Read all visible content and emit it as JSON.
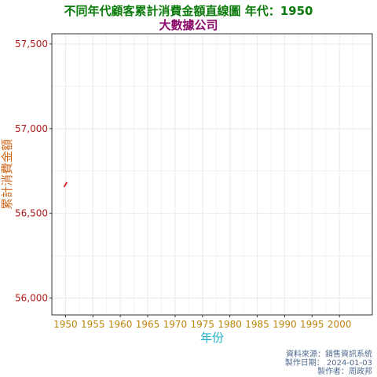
{
  "title": "不同年代顧客累計消費金額直線圖 年代：1950",
  "subtitle": "大數據公司",
  "colors": {
    "title": "#0a7a0a",
    "subtitle": "#8b0a6a",
    "ylabel": "#d2691e",
    "xlabel": "#1fb0c8",
    "ytick": "#b01c1c",
    "xtick": "#b8860b",
    "caption": "#4f6a8f",
    "grid": "#ebebeb",
    "point": "#d01010"
  },
  "caption": {
    "source": "資料來源：銷售資訊系統",
    "date": "製作日期： 2024-01-03",
    "author": "製作者：周政邦"
  },
  "chart_data": {
    "type": "line",
    "title": "不同年代顧客累計消費金額直線圖 年代：1950",
    "subtitle": "大數據公司",
    "xlabel": "年份",
    "ylabel": "累計消費金額",
    "xlim": [
      1947.5,
      2006
    ],
    "ylim": [
      55900,
      57560
    ],
    "x_ticks": [
      1950,
      1955,
      1960,
      1965,
      1970,
      1975,
      1980,
      1985,
      1990,
      1995,
      2000
    ],
    "x_tick_labels": [
      "1950",
      "1955",
      "1960",
      "1965",
      "1970",
      "1975",
      "1980",
      "1985",
      "1990",
      "1995",
      "2000"
    ],
    "y_ticks": [
      56000,
      56500,
      57000,
      57500
    ],
    "y_tick_labels": [
      "56,000",
      "56,500",
      "57,000",
      "57,500"
    ],
    "grid": true,
    "series": [
      {
        "x": [
          1950
        ],
        "y": [
          56670
        ]
      }
    ]
  }
}
